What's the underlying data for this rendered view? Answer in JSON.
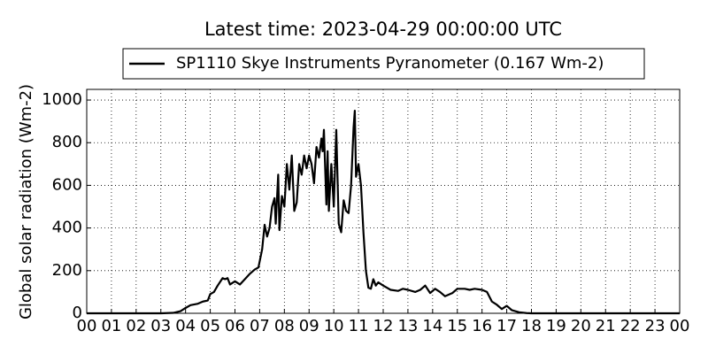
{
  "chart_data": {
    "type": "line",
    "title": "Latest time: 2023-04-29 00:00:00 UTC",
    "ylabel": "Global solar radiation (Wm-2)",
    "xlim": [
      0,
      24
    ],
    "ylim": [
      0,
      1050
    ],
    "xticks": [
      {
        "value": 0,
        "label": "00"
      },
      {
        "value": 1,
        "label": "01"
      },
      {
        "value": 2,
        "label": "02"
      },
      {
        "value": 3,
        "label": "03"
      },
      {
        "value": 4,
        "label": "04"
      },
      {
        "value": 5,
        "label": "05"
      },
      {
        "value": 6,
        "label": "06"
      },
      {
        "value": 7,
        "label": "07"
      },
      {
        "value": 8,
        "label": "08"
      },
      {
        "value": 9,
        "label": "09"
      },
      {
        "value": 10,
        "label": "10"
      },
      {
        "value": 11,
        "label": "11"
      },
      {
        "value": 12,
        "label": "12"
      },
      {
        "value": 13,
        "label": "13"
      },
      {
        "value": 14,
        "label": "14"
      },
      {
        "value": 15,
        "label": "15"
      },
      {
        "value": 16,
        "label": "16"
      },
      {
        "value": 17,
        "label": "17"
      },
      {
        "value": 18,
        "label": "18"
      },
      {
        "value": 19,
        "label": "19"
      },
      {
        "value": 20,
        "label": "20"
      },
      {
        "value": 21,
        "label": "21"
      },
      {
        "value": 22,
        "label": "22"
      },
      {
        "value": 23,
        "label": "23"
      },
      {
        "value": 24,
        "label": "00"
      }
    ],
    "yticks": [
      0,
      200,
      400,
      600,
      800,
      1000
    ],
    "grid": true,
    "legend": "top",
    "series": [
      {
        "name": "SP1110 Skye Instruments Pyranometer (0.167 Wm-2)",
        "color": "#000000",
        "x": [
          0,
          3.0,
          3.5,
          3.8,
          4.0,
          4.2,
          4.5,
          4.7,
          4.9,
          5.0,
          5.15,
          5.3,
          5.5,
          5.6,
          5.7,
          5.8,
          6.0,
          6.2,
          6.4,
          6.6,
          6.8,
          6.95,
          7.1,
          7.2,
          7.3,
          7.4,
          7.5,
          7.6,
          7.65,
          7.75,
          7.8,
          7.9,
          8.0,
          8.1,
          8.2,
          8.3,
          8.4,
          8.5,
          8.6,
          8.7,
          8.8,
          8.9,
          9.0,
          9.1,
          9.2,
          9.3,
          9.4,
          9.5,
          9.55,
          9.6,
          9.7,
          9.75,
          9.8,
          9.9,
          10.0,
          10.1,
          10.2,
          10.3,
          10.4,
          10.5,
          10.6,
          10.7,
          10.8,
          10.85,
          10.9,
          11.0,
          11.1,
          11.2,
          11.3,
          11.4,
          11.5,
          11.6,
          11.7,
          11.8,
          12.0,
          12.3,
          12.6,
          12.8,
          13.0,
          13.3,
          13.5,
          13.7,
          13.9,
          14.1,
          14.3,
          14.5,
          14.8,
          15.0,
          15.3,
          15.5,
          15.7,
          16.0,
          16.2,
          16.4,
          16.6,
          16.8,
          17.0,
          17.2,
          17.5,
          17.8,
          18.0,
          24
        ],
        "values": [
          0,
          0,
          2,
          10,
          25,
          38,
          45,
          55,
          60,
          90,
          100,
          130,
          165,
          160,
          165,
          135,
          150,
          135,
          160,
          185,
          205,
          215,
          300,
          415,
          360,
          400,
          500,
          540,
          420,
          650,
          390,
          550,
          500,
          700,
          580,
          740,
          480,
          520,
          700,
          650,
          740,
          680,
          740,
          700,
          610,
          780,
          730,
          820,
          760,
          860,
          510,
          760,
          480,
          700,
          500,
          860,
          420,
          380,
          530,
          480,
          470,
          600,
          870,
          950,
          640,
          700,
          600,
          380,
          200,
          120,
          115,
          160,
          130,
          145,
          130,
          110,
          105,
          115,
          110,
          100,
          110,
          130,
          95,
          115,
          100,
          80,
          95,
          115,
          115,
          110,
          115,
          110,
          100,
          55,
          40,
          20,
          35,
          15,
          5,
          1,
          0,
          0
        ]
      }
    ]
  }
}
